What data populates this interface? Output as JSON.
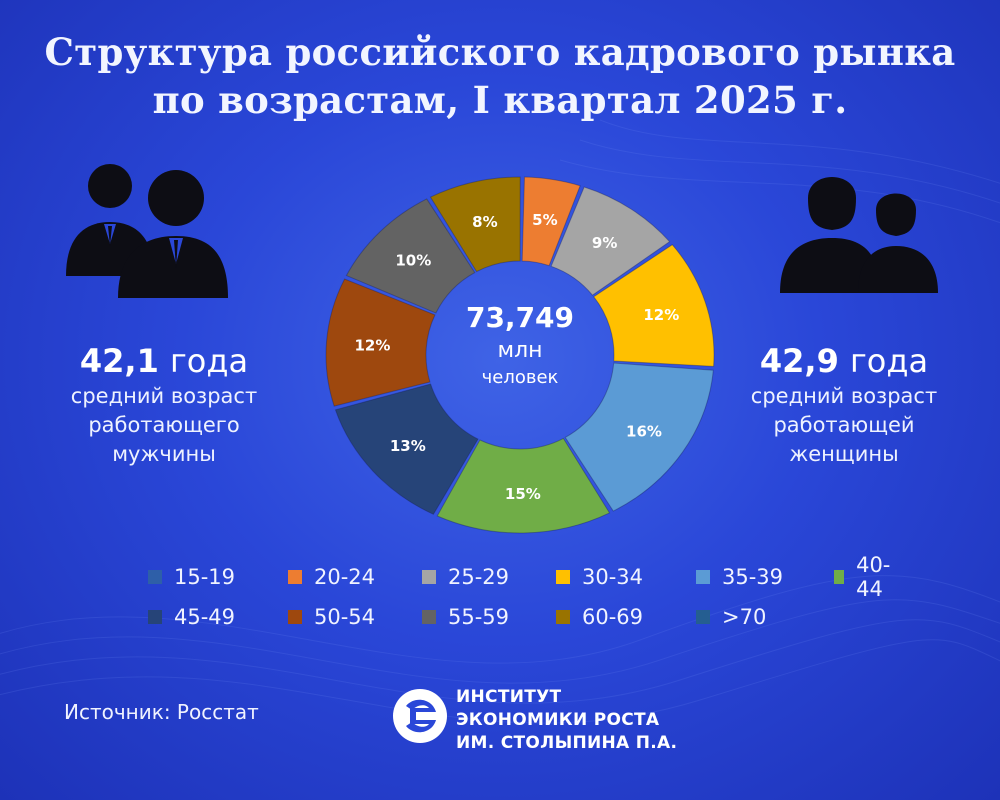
{
  "title": {
    "line1": "Структура российского кадрового рынка",
    "line2": "по возрастам, I квартал 2025 г."
  },
  "men": {
    "value": "42,1",
    "unit": "года",
    "line1": "средний возраст",
    "line2": "работающего",
    "line3": "мужчины"
  },
  "women": {
    "value": "42,9",
    "unit": "года",
    "line1": "средний возраст",
    "line2": "работающей",
    "line3": "женщины"
  },
  "center": {
    "value": "73,749",
    "unit": "млн",
    "label": "человек"
  },
  "source": "Источник: Росстат",
  "logo": {
    "line1": "ИНСТИТУТ",
    "line2": "ЭКОНОМИКИ РОСТА",
    "line3": "ИМ. СТОЛЫПИНА П.А."
  },
  "chart_data": {
    "type": "pie",
    "variant": "donut",
    "categories": [
      "15-19",
      "20-24",
      "25-29",
      "30-34",
      "35-39",
      "40-44",
      "45-49",
      "50-54",
      "55-59",
      "60-69",
      ">70"
    ],
    "colors": [
      "#2e5fa8",
      "#ed7d31",
      "#a5a5a5",
      "#ffc000",
      "#5b9bd5",
      "#70ad47",
      "#264478",
      "#9e480e",
      "#636363",
      "#997300",
      "#255e91"
    ],
    "slices": [
      {
        "category": "20-24",
        "value": 5,
        "label": "5%"
      },
      {
        "category": "25-29",
        "value": 9,
        "label": "9%"
      },
      {
        "category": "30-34",
        "value": 12,
        "label": "12%"
      },
      {
        "category": "35-39",
        "value": 16,
        "label": "16%"
      },
      {
        "category": "40-44",
        "value": 15,
        "label": "15%"
      },
      {
        "category": "45-49",
        "value": 13,
        "label": "13%"
      },
      {
        "category": "50-54",
        "value": 12,
        "label": "12%"
      },
      {
        "category": "55-59",
        "value": 10,
        "label": "10%"
      },
      {
        "category": "60-69",
        "value": 8,
        "label": "8%"
      }
    ],
    "legend_position": "bottom"
  }
}
